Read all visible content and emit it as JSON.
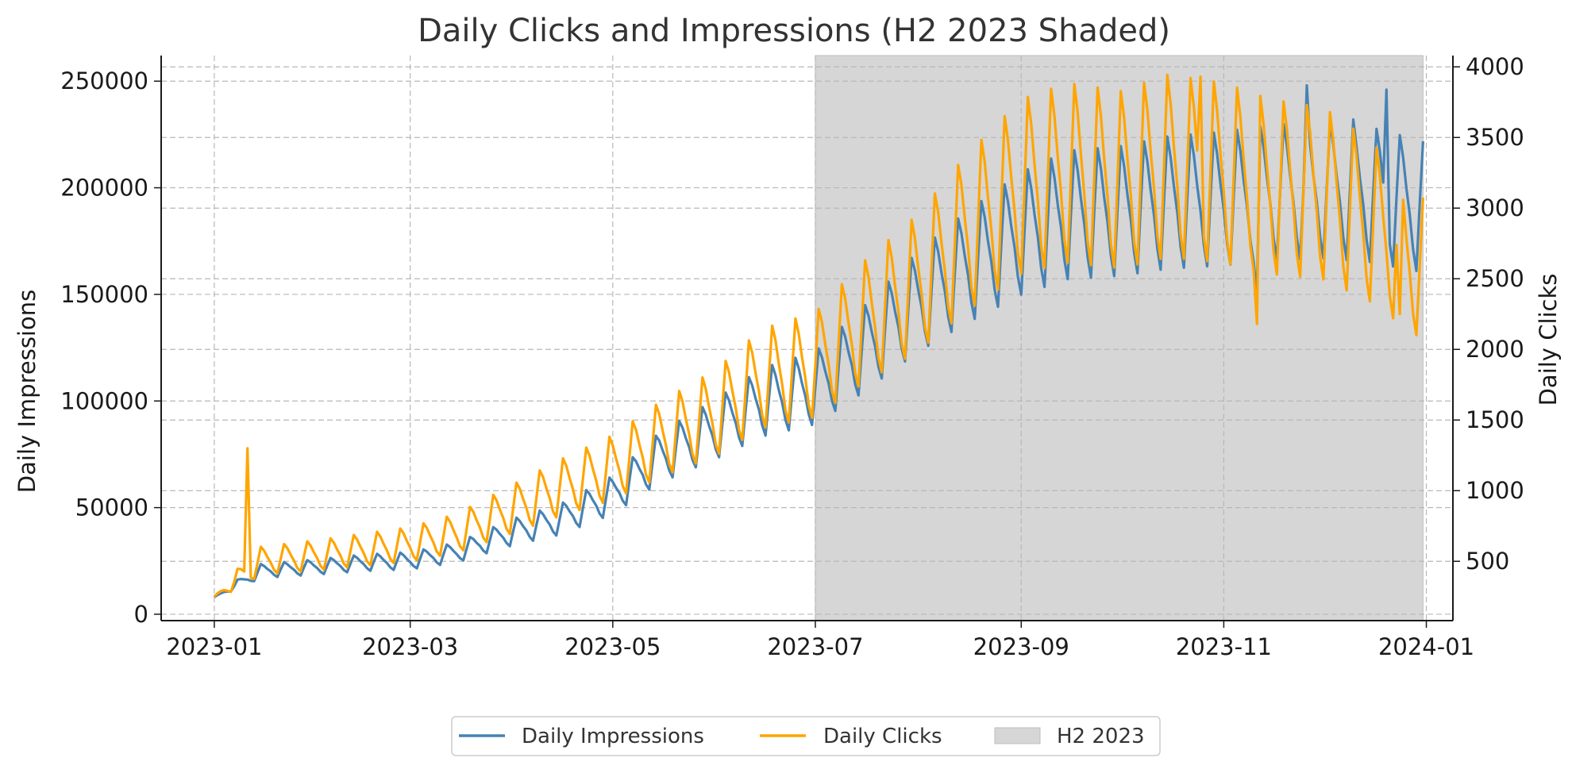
{
  "chart_data": {
    "type": "line",
    "title": "Daily Clicks and Impressions (H2 2023 Shaded)",
    "ylabel_left": "Daily Impressions",
    "ylabel_right": "Daily Clicks",
    "x_range": [
      "2023-01-01",
      "2023-12-31"
    ],
    "xlim": [
      "2022-12-16",
      "2024-01-09"
    ],
    "x_ticks": [
      "2023-01",
      "2023-03",
      "2023-05",
      "2023-07",
      "2023-09",
      "2023-11",
      "2024-01"
    ],
    "y_left_lim": [
      -3000,
      262000
    ],
    "y_left_ticks": [
      "0",
      "50000",
      "100000",
      "150000",
      "200000",
      "250000"
    ],
    "y_right_lim": [
      80,
      4080
    ],
    "y_right_ticks": [
      "500",
      "1000",
      "1500",
      "2000",
      "2500",
      "3000",
      "3500",
      "4000"
    ],
    "grid": true,
    "shaded_region": {
      "start": "2023-07-01",
      "end": "2023-12-31",
      "label": "H2 2023",
      "color": "#d6d6d6"
    },
    "legend_position": "bottom-center",
    "series": [
      {
        "name": "Daily Impressions",
        "axis": "left",
        "color": "#4682b4",
        "weekly_pattern": [
          1.12,
          1.07,
          1.0,
          0.94,
          0.86,
          0.81,
          0.97
        ],
        "anchors": [
          [
            "2023-01-01",
            8000
          ],
          [
            "2023-01-15",
            21000
          ],
          [
            "2023-02-01",
            23000
          ],
          [
            "2023-02-15",
            25000
          ],
          [
            "2023-03-01",
            26000
          ],
          [
            "2023-03-15",
            30000
          ],
          [
            "2023-04-01",
            40000
          ],
          [
            "2023-04-15",
            46000
          ],
          [
            "2023-05-01",
            58000
          ],
          [
            "2023-05-15",
            76000
          ],
          [
            "2023-06-01",
            90000
          ],
          [
            "2023-06-15",
            103000
          ],
          [
            "2023-07-01",
            110000
          ],
          [
            "2023-07-15",
            128000
          ],
          [
            "2023-08-01",
            152000
          ],
          [
            "2023-08-15",
            168000
          ],
          [
            "2023-09-01",
            185000
          ],
          [
            "2023-09-15",
            194000
          ],
          [
            "2023-10-01",
            196000
          ],
          [
            "2023-10-15",
            200000
          ],
          [
            "2023-11-01",
            202000
          ],
          [
            "2023-11-15",
            205000
          ],
          [
            "2023-12-01",
            206000
          ],
          [
            "2023-12-15",
            204000
          ],
          [
            "2023-12-31",
            198000
          ]
        ],
        "spikes": [
          [
            "2023-11-11",
            150000
          ],
          [
            "2023-11-26",
            248000
          ],
          [
            "2023-12-20",
            246000
          ],
          [
            "2023-12-10",
            232000
          ]
        ]
      },
      {
        "name": "Daily Clicks",
        "axis": "right",
        "color": "#ffa500",
        "weekly_pattern": [
          1.16,
          1.1,
          1.01,
          0.93,
          0.83,
          0.78,
          0.97
        ],
        "anchors": [
          [
            "2023-01-01",
            250
          ],
          [
            "2023-01-15",
            520
          ],
          [
            "2023-02-01",
            560
          ],
          [
            "2023-02-15",
            600
          ],
          [
            "2023-03-01",
            640
          ],
          [
            "2023-03-15",
            720
          ],
          [
            "2023-04-01",
            900
          ],
          [
            "2023-04-15",
            1050
          ],
          [
            "2023-05-01",
            1200
          ],
          [
            "2023-05-15",
            1400
          ],
          [
            "2023-06-01",
            1600
          ],
          [
            "2023-06-15",
            1850
          ],
          [
            "2023-07-01",
            1950
          ],
          [
            "2023-07-15",
            2250
          ],
          [
            "2023-08-01",
            2550
          ],
          [
            "2023-08-15",
            2900
          ],
          [
            "2023-09-01",
            3250
          ],
          [
            "2023-09-15",
            3350
          ],
          [
            "2023-10-01",
            3300
          ],
          [
            "2023-10-15",
            3400
          ],
          [
            "2023-11-01",
            3350
          ],
          [
            "2023-11-15",
            3250
          ],
          [
            "2023-12-01",
            3200
          ],
          [
            "2023-12-15",
            3000
          ],
          [
            "2023-12-31",
            2650
          ]
        ],
        "spikes": [
          [
            "2023-01-11",
            1300
          ],
          [
            "2023-11-11",
            2180
          ],
          [
            "2023-10-25",
            3930
          ],
          [
            "2023-12-24",
            2250
          ]
        ]
      }
    ]
  },
  "legend": {
    "impressions": "Daily Impressions",
    "clicks": "Daily Clicks",
    "shaded": "H2 2023"
  }
}
